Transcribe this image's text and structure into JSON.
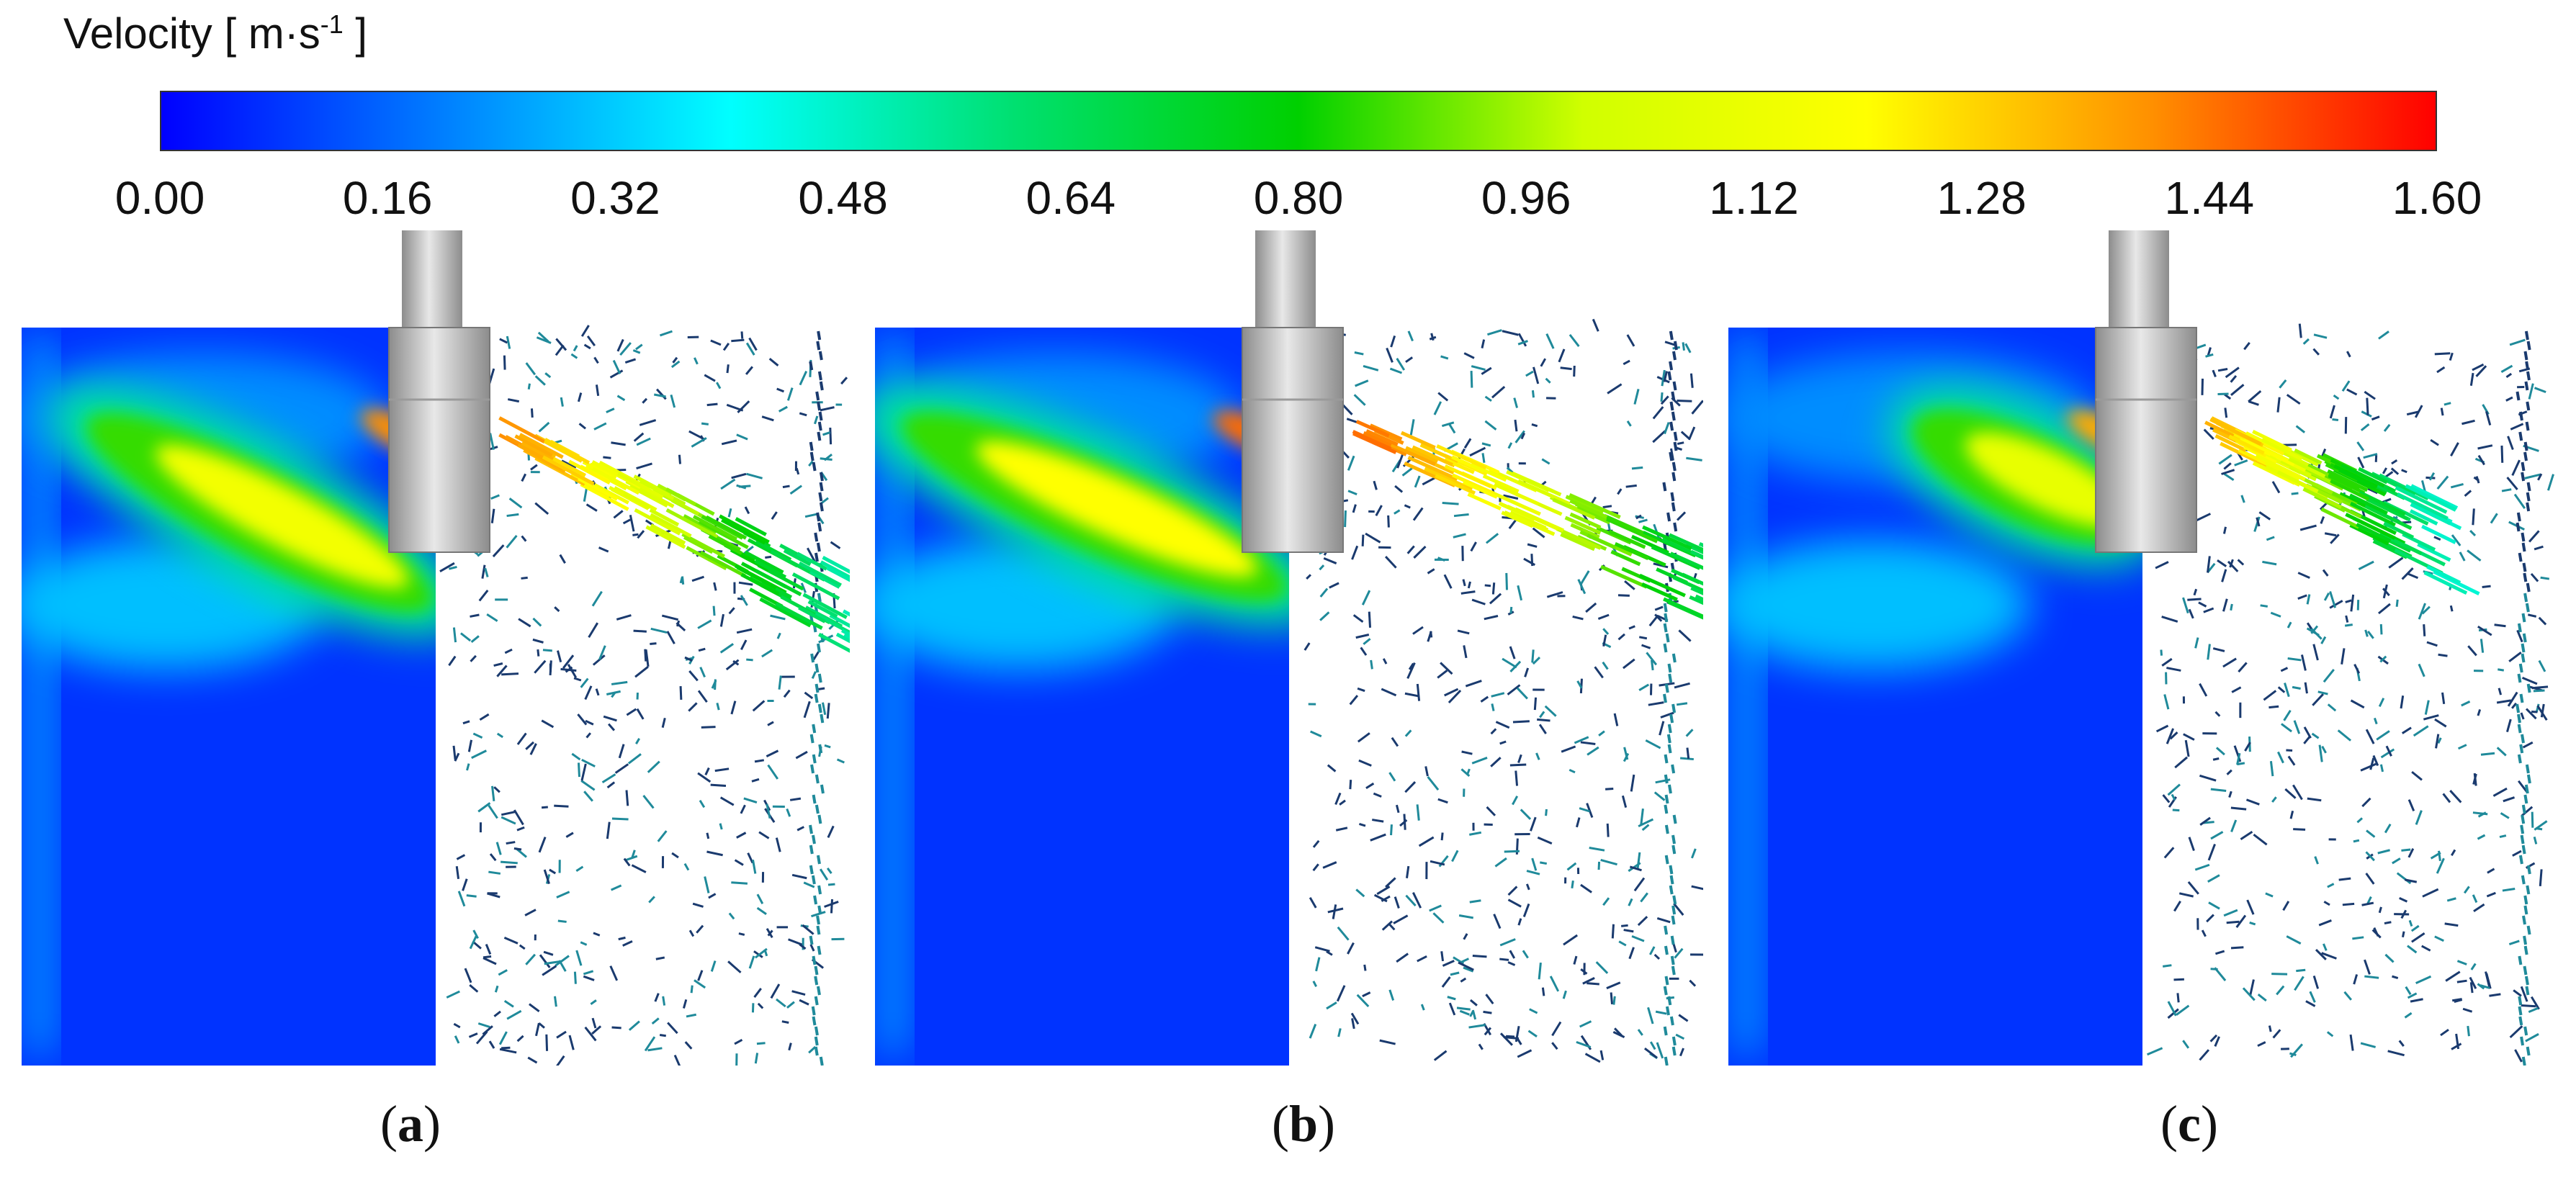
{
  "legend": {
    "title_prefix": "Velocity [ m·s",
    "title_exp": "-1",
    "title_suffix": " ]",
    "min": 0.0,
    "max": 1.6,
    "ticks": [
      "0.00",
      "0.16",
      "0.32",
      "0.48",
      "0.64",
      "0.80",
      "0.96",
      "1.12",
      "1.28",
      "1.44",
      "1.60"
    ],
    "stops": [
      "#0000ff",
      "#0080ff",
      "#00ffff",
      "#00e070",
      "#00d000",
      "#d0ff00",
      "#ffff00",
      "#ff9000",
      "#ff0000"
    ]
  },
  "panels": [
    {
      "label_open": "(",
      "label": "a",
      "label_close": ")",
      "jet_tip_velocity": 1.4,
      "jet_body_velocity": 1.15
    },
    {
      "label_open": "(",
      "label": "b",
      "label_close": ")",
      "jet_tip_velocity": 1.45,
      "jet_body_velocity": 1.2
    },
    {
      "label_open": "(",
      "label": "c",
      "label_close": ")",
      "jet_tip_velocity": 1.35,
      "jet_body_velocity": 1.1
    }
  ],
  "colors": {
    "background_field": "#0a2fb8",
    "nozzle_light": "#e8e8e8",
    "nozzle_dark": "#8c8c8c",
    "vector_dark": "#1a3a6e",
    "vector_teal": "#1f8a9a"
  }
}
